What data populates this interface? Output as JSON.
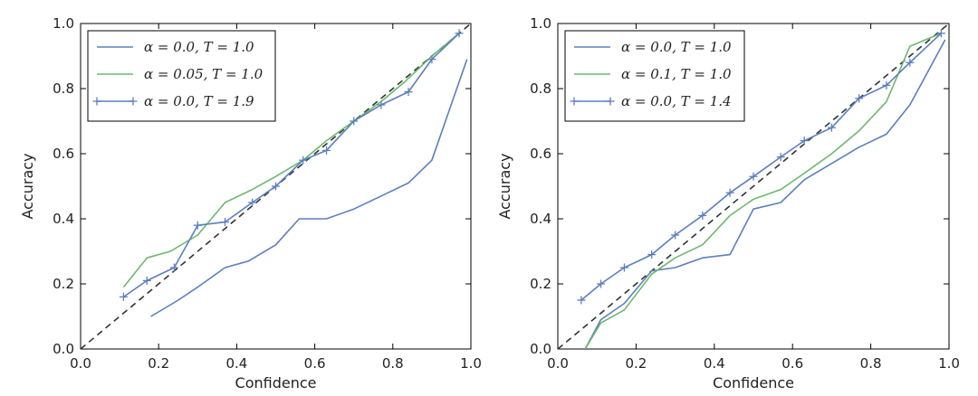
{
  "chart_data": [
    {
      "type": "line",
      "title": "",
      "xlabel": "Confidence",
      "ylabel": "Accuracy",
      "xlim": [
        0.0,
        1.0
      ],
      "ylim": [
        0.0,
        1.0
      ],
      "xticks": [
        "0.0",
        "0.2",
        "0.4",
        "0.6",
        "0.8",
        "1.0"
      ],
      "yticks": [
        "0.0",
        "0.2",
        "0.4",
        "0.6",
        "0.8",
        "1.0"
      ],
      "grid": false,
      "legend_position": "top-left",
      "reference_line": {
        "x": [
          0.0,
          1.0
        ],
        "y": [
          0.0,
          1.0
        ],
        "style": "dashed",
        "color": "#333333"
      },
      "series": [
        {
          "name": "α = 0.0, T = 1.0",
          "color": "#5b7fbf",
          "marker": "none",
          "x": [
            0.18,
            0.25,
            0.3,
            0.37,
            0.43,
            0.5,
            0.56,
            0.63,
            0.7,
            0.77,
            0.84,
            0.9,
            0.99
          ],
          "y": [
            0.1,
            0.15,
            0.19,
            0.25,
            0.27,
            0.32,
            0.4,
            0.4,
            0.43,
            0.47,
            0.51,
            0.58,
            0.89
          ]
        },
        {
          "name": "α = 0.05, T = 1.0",
          "color": "#6cb96c",
          "marker": "none",
          "x": [
            0.11,
            0.17,
            0.23,
            0.3,
            0.37,
            0.44,
            0.5,
            0.57,
            0.63,
            0.7,
            0.77,
            0.83,
            0.9,
            0.97
          ],
          "y": [
            0.19,
            0.28,
            0.3,
            0.35,
            0.45,
            0.49,
            0.53,
            0.58,
            0.64,
            0.7,
            0.76,
            0.82,
            0.9,
            0.97
          ]
        },
        {
          "name": "α = 0.0, T = 1.9",
          "color": "#5b7fbf",
          "marker": "+",
          "x": [
            0.11,
            0.17,
            0.24,
            0.3,
            0.37,
            0.44,
            0.5,
            0.57,
            0.63,
            0.7,
            0.77,
            0.84,
            0.9,
            0.97
          ],
          "y": [
            0.16,
            0.21,
            0.25,
            0.38,
            0.39,
            0.45,
            0.5,
            0.58,
            0.61,
            0.7,
            0.75,
            0.79,
            0.89,
            0.97
          ]
        }
      ]
    },
    {
      "type": "line",
      "title": "",
      "xlabel": "Confidence",
      "ylabel": "Accuracy",
      "xlim": [
        0.0,
        1.0
      ],
      "ylim": [
        0.0,
        1.0
      ],
      "xticks": [
        "0.0",
        "0.2",
        "0.4",
        "0.6",
        "0.8",
        "1.0"
      ],
      "yticks": [
        "0.0",
        "0.2",
        "0.4",
        "0.6",
        "0.8",
        "1.0"
      ],
      "grid": false,
      "legend_position": "top-left",
      "reference_line": {
        "x": [
          0.0,
          1.0
        ],
        "y": [
          0.0,
          1.0
        ],
        "style": "dashed",
        "color": "#333333"
      },
      "series": [
        {
          "name": "α = 0.0, T = 1.0",
          "color": "#5b7fbf",
          "marker": "none",
          "x": [
            0.07,
            0.11,
            0.17,
            0.24,
            0.3,
            0.37,
            0.44,
            0.5,
            0.57,
            0.63,
            0.7,
            0.77,
            0.84,
            0.9,
            0.99
          ],
          "y": [
            0.0,
            0.09,
            0.14,
            0.24,
            0.25,
            0.28,
            0.29,
            0.43,
            0.45,
            0.52,
            0.57,
            0.62,
            0.66,
            0.75,
            0.95
          ]
        },
        {
          "name": "α = 0.1, T = 1.0",
          "color": "#6cb96c",
          "marker": "none",
          "x": [
            0.07,
            0.11,
            0.17,
            0.24,
            0.3,
            0.37,
            0.44,
            0.5,
            0.57,
            0.63,
            0.7,
            0.77,
            0.84,
            0.9,
            0.98
          ],
          "y": [
            0.0,
            0.08,
            0.12,
            0.23,
            0.28,
            0.32,
            0.41,
            0.46,
            0.49,
            0.54,
            0.6,
            0.67,
            0.76,
            0.93,
            0.97
          ]
        },
        {
          "name": "α = 0.0, T = 1.4",
          "color": "#5b7fbf",
          "marker": "+",
          "x": [
            0.06,
            0.11,
            0.17,
            0.24,
            0.3,
            0.37,
            0.44,
            0.5,
            0.57,
            0.63,
            0.7,
            0.77,
            0.84,
            0.9,
            0.98
          ],
          "y": [
            0.15,
            0.2,
            0.25,
            0.29,
            0.35,
            0.41,
            0.48,
            0.53,
            0.59,
            0.64,
            0.68,
            0.77,
            0.81,
            0.88,
            0.97
          ]
        }
      ]
    }
  ]
}
